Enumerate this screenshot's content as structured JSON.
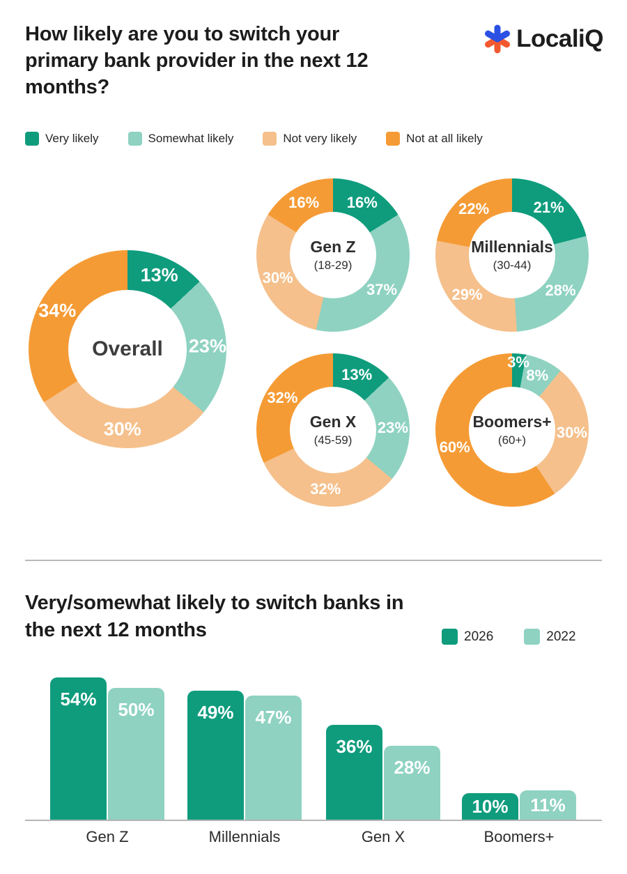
{
  "header": {
    "title": "How likely are you to switch your primary bank provider in the next 12 months?",
    "logo_text": "LocaliQ"
  },
  "colors": {
    "very_likely": "#0E9C7D",
    "somewhat_likely": "#8FD2C1",
    "not_very_likely": "#F5C08C",
    "not_at_all_likely": "#F59B35",
    "bar_2026": "#0E9C7D",
    "bar_2022": "#8FD2C1",
    "logo_blue": "#2B50E3",
    "logo_orange": "#F2582F",
    "axis_gray": "#B5B5B5"
  },
  "series_order": [
    "very_likely",
    "somewhat_likely",
    "not_very_likely",
    "not_at_all_likely"
  ],
  "legend_items": [
    {
      "label": "Very likely",
      "color_key": "very_likely"
    },
    {
      "label": "Somewhat likely",
      "color_key": "somewhat_likely"
    },
    {
      "label": "Not very likely",
      "color_key": "not_very_likely"
    },
    {
      "label": "Not at all likely",
      "color_key": "not_at_all_likely"
    }
  ],
  "chart_data": [
    {
      "type": "pie",
      "subtype": "donut",
      "title": "Overall",
      "subtitle": "",
      "categories": [
        "Very likely",
        "Somewhat likely",
        "Not very likely",
        "Not at all likely"
      ],
      "values": [
        13,
        23,
        30,
        34
      ],
      "value_suffix": "%"
    },
    {
      "type": "pie",
      "subtype": "donut",
      "title": "Gen Z",
      "subtitle": "(18-29)",
      "categories": [
        "Very likely",
        "Somewhat likely",
        "Not very likely",
        "Not at all likely"
      ],
      "values": [
        16,
        37,
        30,
        16
      ],
      "value_suffix": "%"
    },
    {
      "type": "pie",
      "subtype": "donut",
      "title": "Millennials",
      "subtitle": "(30-44)",
      "categories": [
        "Very likely",
        "Somewhat likely",
        "Not very likely",
        "Not at all likely"
      ],
      "values": [
        21,
        28,
        29,
        22
      ],
      "value_suffix": "%"
    },
    {
      "type": "pie",
      "subtype": "donut",
      "title": "Gen X",
      "subtitle": "(45-59)",
      "categories": [
        "Very likely",
        "Somewhat likely",
        "Not very likely",
        "Not at all likely"
      ],
      "values": [
        13,
        23,
        32,
        32
      ],
      "value_suffix": "%"
    },
    {
      "type": "pie",
      "subtype": "donut",
      "title": "Boomers+",
      "subtitle": "(60+)",
      "categories": [
        "Very likely",
        "Somewhat likely",
        "Not very likely",
        "Not at all likely"
      ],
      "values": [
        3,
        8,
        30,
        60
      ],
      "value_suffix": "%"
    },
    {
      "type": "bar",
      "title": "Very/somewhat likely to switch banks in the next 12 months",
      "categories": [
        "Gen Z",
        "Millennials",
        "Gen X",
        "Boomers+"
      ],
      "series": [
        {
          "name": "2026",
          "values": [
            54,
            49,
            36,
            10
          ]
        },
        {
          "name": "2022",
          "values": [
            50,
            47,
            28,
            11
          ]
        }
      ],
      "ylim": [
        0,
        60
      ],
      "grid": false,
      "legend": [
        "2026",
        "2022"
      ],
      "legend_position": "top-right",
      "value_suffix": "%"
    }
  ]
}
